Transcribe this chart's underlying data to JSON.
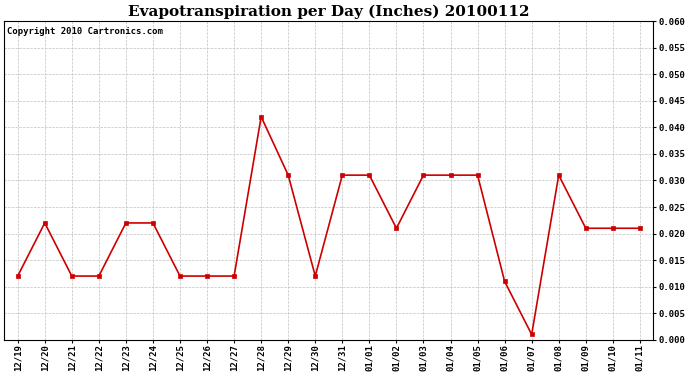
{
  "title": "Evapotranspiration per Day (Inches) 20100112",
  "copyright": "Copyright 2010 Cartronics.com",
  "labels": [
    "12/19",
    "12/20",
    "12/21",
    "12/22",
    "12/23",
    "12/24",
    "12/25",
    "12/26",
    "12/27",
    "12/28",
    "12/29",
    "12/30",
    "12/31",
    "01/01",
    "01/02",
    "01/03",
    "01/04",
    "01/05",
    "01/06",
    "01/07",
    "01/08",
    "01/09",
    "01/10",
    "01/11"
  ],
  "values": [
    0.012,
    0.022,
    0.012,
    0.012,
    0.022,
    0.022,
    0.012,
    0.012,
    0.012,
    0.042,
    0.031,
    0.012,
    0.031,
    0.031,
    0.021,
    0.031,
    0.031,
    0.031,
    0.011,
    0.001,
    0.031,
    0.021,
    0.021,
    0.021
  ],
  "ylim": [
    0.0,
    0.06
  ],
  "yticks": [
    0.0,
    0.005,
    0.01,
    0.015,
    0.02,
    0.025,
    0.03,
    0.035,
    0.04,
    0.045,
    0.05,
    0.055,
    0.06
  ],
  "line_color": "#cc0000",
  "marker_color": "#cc0000",
  "bg_color": "#ffffff",
  "plot_bg_color": "#ffffff",
  "grid_color": "#c0c0c0",
  "title_fontsize": 11,
  "copyright_fontsize": 6.5,
  "tick_fontsize": 6.5
}
